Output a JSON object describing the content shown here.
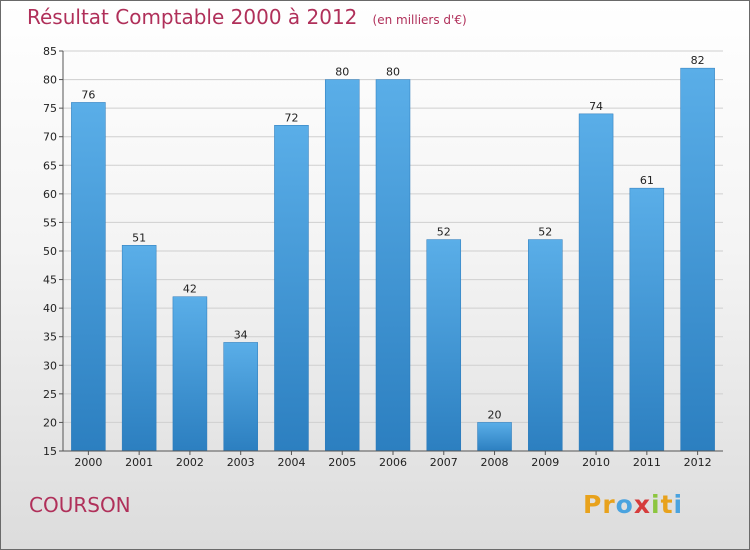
{
  "header": {
    "title": "Résultat Comptable 2000 à 2012",
    "unit": "(en milliers d'€)"
  },
  "place": "COURSON",
  "logo": {
    "letters": [
      "P",
      "r",
      "o",
      "x",
      "i",
      "t",
      "i"
    ],
    "colors": [
      "#e8a21c",
      "#e8a21c",
      "#4aa3df",
      "#d63c3c",
      "#8cc63f",
      "#e8a21c",
      "#4aa3df"
    ]
  },
  "chart_data": {
    "type": "bar",
    "categories": [
      "2000",
      "2001",
      "2002",
      "2003",
      "2004",
      "2005",
      "2006",
      "2007",
      "2008",
      "2009",
      "2010",
      "2011",
      "2012"
    ],
    "values": [
      76,
      51,
      42,
      34,
      72,
      80,
      80,
      52,
      20,
      52,
      74,
      61,
      82
    ],
    "title": "Résultat Comptable 2000 à 2012",
    "subtitle": "(en milliers d'€)",
    "ylim": [
      15,
      85
    ],
    "yticks": [
      15,
      20,
      25,
      30,
      35,
      40,
      45,
      50,
      55,
      60,
      65,
      70,
      75,
      80,
      85
    ],
    "grid": true,
    "bar_color": "#4a9fe0"
  }
}
